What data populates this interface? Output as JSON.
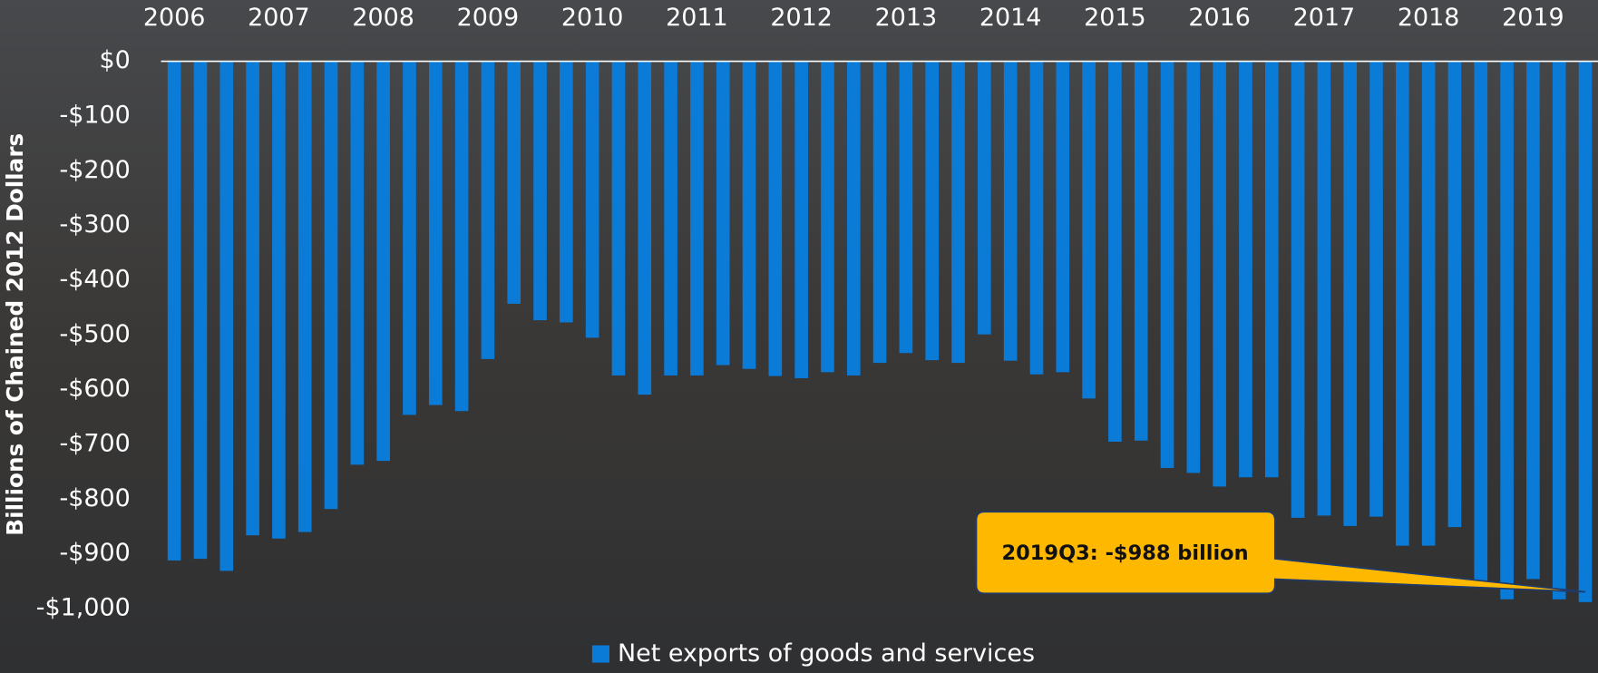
{
  "chart_data": {
    "type": "bar",
    "y_label": "Billions of Chained 2012 Dollars",
    "categories": [
      "2006",
      null,
      null,
      null,
      "2007",
      null,
      null,
      null,
      "2008",
      null,
      null,
      null,
      "2009",
      null,
      null,
      null,
      "2010",
      null,
      null,
      null,
      "2011",
      null,
      null,
      null,
      "2012",
      null,
      null,
      null,
      "2013",
      null,
      null,
      null,
      "2014",
      null,
      null,
      null,
      "2015",
      null,
      null,
      null,
      "2016",
      null,
      null,
      null,
      "2017",
      null,
      null,
      null,
      "2018",
      null,
      null,
      null,
      "2019",
      null,
      null
    ],
    "series": [
      {
        "name": "Net exports of goods and services",
        "color": "#0b7bd8",
        "values": [
          -912,
          -909,
          -931,
          -866,
          -872,
          -860,
          -818,
          -737,
          -730,
          -646,
          -628,
          -639,
          -544,
          -443,
          -473,
          -477,
          -505,
          -574,
          -609,
          -574,
          -574,
          -555,
          -562,
          -575,
          -579,
          -568,
          -574,
          -551,
          -533,
          -546,
          -551,
          -499,
          -547,
          -572,
          -568,
          -616,
          -695,
          -693,
          -743,
          -752,
          -777,
          -760,
          -760,
          -834,
          -830,
          -849,
          -832,
          -885,
          -885,
          -851,
          -950,
          -983,
          -946,
          -983,
          -988
        ]
      }
    ],
    "ylim": [
      -1000,
      0
    ],
    "yticks": [
      {
        "value": 0,
        "label": "$0"
      },
      {
        "value": -100,
        "label": "-$100"
      },
      {
        "value": -200,
        "label": "-$200"
      },
      {
        "value": -300,
        "label": "-$300"
      },
      {
        "value": -400,
        "label": "-$400"
      },
      {
        "value": -500,
        "label": "-$500"
      },
      {
        "value": -600,
        "label": "-$600"
      },
      {
        "value": -700,
        "label": "-$700"
      },
      {
        "value": -800,
        "label": "-$800"
      },
      {
        "value": -900,
        "label": "-$900"
      },
      {
        "value": -1000,
        "label": "-$1,000"
      }
    ],
    "annotation": "2019Q3: -$988 billion",
    "legend": "bottom"
  }
}
